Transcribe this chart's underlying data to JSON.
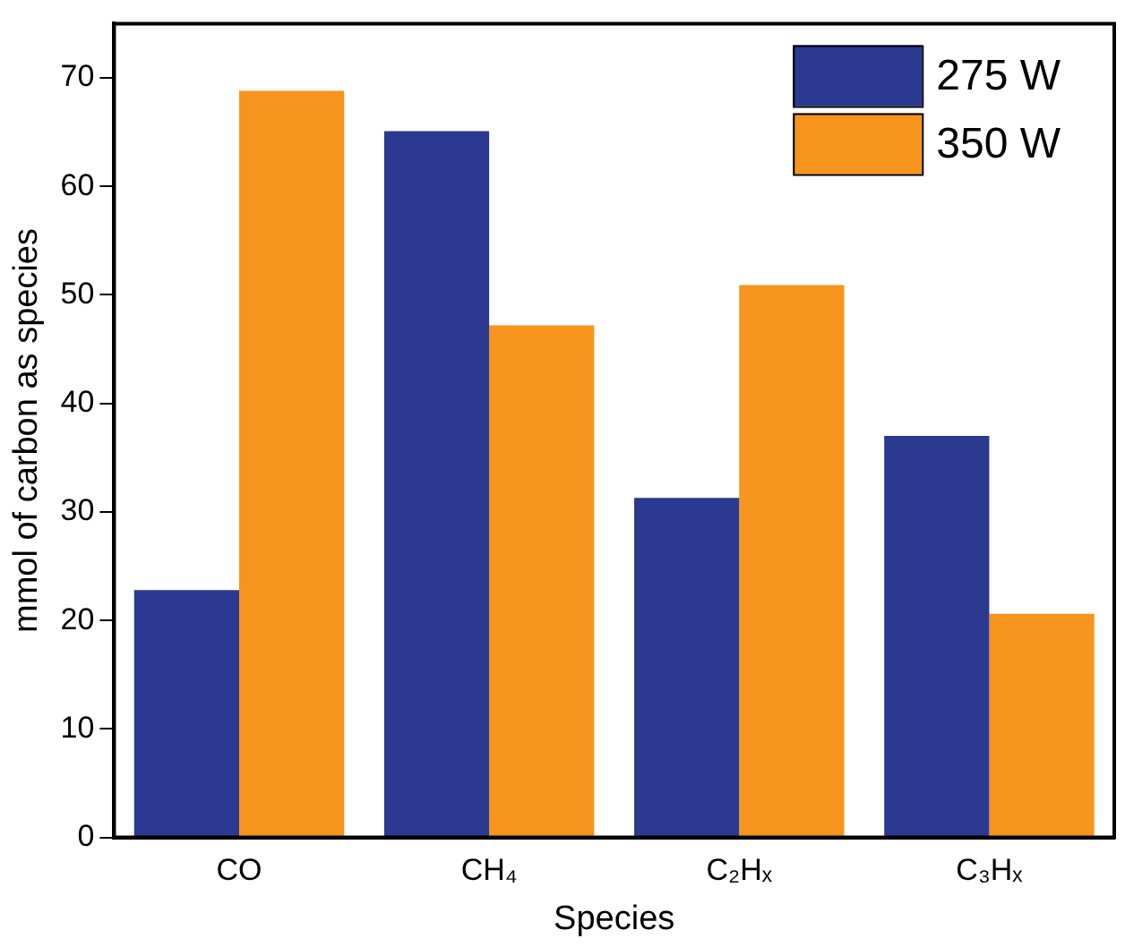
{
  "chart_data": {
    "type": "bar",
    "xlabel": "Species",
    "ylabel": "mmol of carbon as species",
    "categories": [
      "CO",
      "CH₄",
      "C₂Hₓ",
      "C₃Hₓ"
    ],
    "series": [
      {
        "name": "275 W",
        "color": "#2b3990",
        "values": [
          22.8,
          65.1,
          31.3,
          37.0
        ]
      },
      {
        "name": "350 W",
        "color": "#f7941d",
        "values": [
          68.8,
          47.2,
          50.9,
          20.6
        ]
      }
    ],
    "ylim": [
      0,
      75
    ],
    "yticks": [
      0,
      10,
      20,
      30,
      40,
      50,
      60,
      70
    ],
    "grid": false,
    "legend": "top right"
  }
}
